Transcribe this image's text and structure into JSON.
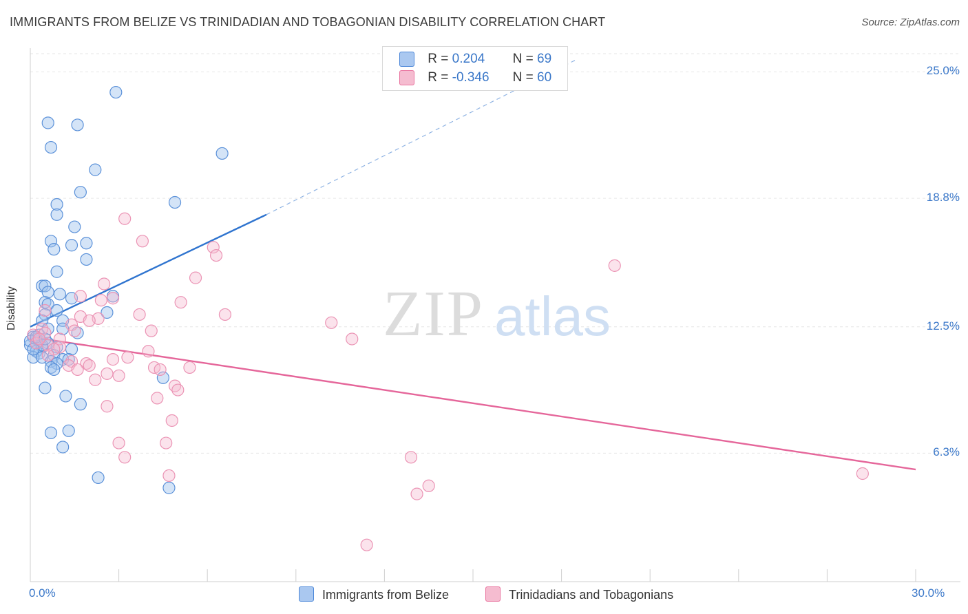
{
  "title": "IMMIGRANTS FROM BELIZE VS TRINIDADIAN AND TOBAGONIAN DISABILITY CORRELATION CHART",
  "source": "Source: ZipAtlas.com",
  "watermark": {
    "zip": "ZIP",
    "atlas": "atlas"
  },
  "legend": {
    "rows": [
      {
        "r_label": "R = ",
        "r_value": "0.204",
        "n_label": "N = ",
        "n_value": "69"
      },
      {
        "r_label": "R = ",
        "r_value": "-0.346",
        "n_label": "N = ",
        "n_value": "60"
      }
    ]
  },
  "colors": {
    "blue": "#4a86d8",
    "blue_fill": "#aac8f0",
    "pink": "#e9719d",
    "pink_fill": "#f5bcd0",
    "axis_text": "#3b78c9"
  },
  "chart_data": {
    "type": "scatter",
    "ylabel": "Disability",
    "xlabel": "",
    "xlim": [
      0,
      30
    ],
    "ylim": [
      0,
      26.5
    ],
    "x_tick_labels": [
      "0.0%",
      "30.0%"
    ],
    "y_ticks": [
      {
        "value": 6.3,
        "label": "6.3%"
      },
      {
        "value": 12.5,
        "label": "12.5%"
      },
      {
        "value": 18.8,
        "label": "18.8%"
      },
      {
        "value": 25.0,
        "label": "25.0%"
      }
    ],
    "grid": true,
    "legend_position": "top-center",
    "series": [
      {
        "name": "Immigrants from Belize",
        "color": "#4a86d8",
        "trend": {
          "x0": 0.0,
          "y0": 12.5,
          "x1": 8.0,
          "y1": 18.0,
          "x_dash_end": 18.5,
          "y_dash_end": 25.6
        },
        "points": [
          [
            2.9,
            24.0
          ],
          [
            0.6,
            22.5
          ],
          [
            1.6,
            22.4
          ],
          [
            0.7,
            21.3
          ],
          [
            6.5,
            21.0
          ],
          [
            2.2,
            20.2
          ],
          [
            1.7,
            19.1
          ],
          [
            0.9,
            18.5
          ],
          [
            4.9,
            18.6
          ],
          [
            0.9,
            18.0
          ],
          [
            1.5,
            17.4
          ],
          [
            0.7,
            16.7
          ],
          [
            1.9,
            16.6
          ],
          [
            1.4,
            16.5
          ],
          [
            0.8,
            16.3
          ],
          [
            1.9,
            15.8
          ],
          [
            0.9,
            15.2
          ],
          [
            0.4,
            14.5
          ],
          [
            0.5,
            14.5
          ],
          [
            0.6,
            14.2
          ],
          [
            1.0,
            14.1
          ],
          [
            2.8,
            14.0
          ],
          [
            1.4,
            13.9
          ],
          [
            0.5,
            13.7
          ],
          [
            0.6,
            13.6
          ],
          [
            0.9,
            13.3
          ],
          [
            2.6,
            13.2
          ],
          [
            0.5,
            13.1
          ],
          [
            0.4,
            12.8
          ],
          [
            1.1,
            12.8
          ],
          [
            0.6,
            12.4
          ],
          [
            1.1,
            12.4
          ],
          [
            1.6,
            12.2
          ],
          [
            0.1,
            12.0
          ],
          [
            0.2,
            11.9
          ],
          [
            0.3,
            11.8
          ],
          [
            0.2,
            11.7
          ],
          [
            0.6,
            11.7
          ],
          [
            0.0,
            11.6
          ],
          [
            0.4,
            11.5
          ],
          [
            0.9,
            11.5
          ],
          [
            1.4,
            11.4
          ],
          [
            0.2,
            11.3
          ],
          [
            0.3,
            11.2
          ],
          [
            0.8,
            11.1
          ],
          [
            0.1,
            11.0
          ],
          [
            0.4,
            11.0
          ],
          [
            1.1,
            10.9
          ],
          [
            1.3,
            10.9
          ],
          [
            0.7,
            10.8
          ],
          [
            0.9,
            10.7
          ],
          [
            0.7,
            10.5
          ],
          [
            0.8,
            10.4
          ],
          [
            4.5,
            10.0
          ],
          [
            0.5,
            9.5
          ],
          [
            1.2,
            9.1
          ],
          [
            1.7,
            8.7
          ],
          [
            1.3,
            7.4
          ],
          [
            0.7,
            7.3
          ],
          [
            1.1,
            6.6
          ],
          [
            2.3,
            5.1
          ],
          [
            4.7,
            4.6
          ],
          [
            0.2,
            11.9
          ],
          [
            0.3,
            12.1
          ],
          [
            0.0,
            11.8
          ],
          [
            0.4,
            11.6
          ],
          [
            0.2,
            12.0
          ],
          [
            0.1,
            11.4
          ],
          [
            0.5,
            11.9
          ]
        ]
      },
      {
        "name": "Trinidadians and Tobagonians",
        "color": "#e9719d",
        "trend": {
          "x0": 0.0,
          "y0": 12.0,
          "x1": 30.0,
          "y1": 5.5
        },
        "points": [
          [
            3.2,
            17.8
          ],
          [
            3.8,
            16.7
          ],
          [
            6.2,
            16.4
          ],
          [
            6.3,
            16.0
          ],
          [
            19.8,
            15.5
          ],
          [
            5.6,
            14.9
          ],
          [
            2.5,
            14.6
          ],
          [
            1.7,
            14.0
          ],
          [
            2.4,
            13.8
          ],
          [
            2.8,
            13.9
          ],
          [
            5.1,
            13.7
          ],
          [
            0.5,
            13.3
          ],
          [
            3.7,
            13.1
          ],
          [
            6.6,
            13.1
          ],
          [
            1.7,
            13.0
          ],
          [
            2.3,
            12.9
          ],
          [
            2.0,
            12.8
          ],
          [
            10.2,
            12.7
          ],
          [
            1.4,
            12.6
          ],
          [
            0.4,
            12.4
          ],
          [
            1.5,
            12.3
          ],
          [
            4.1,
            12.3
          ],
          [
            0.1,
            12.1
          ],
          [
            0.5,
            12.2
          ],
          [
            1.0,
            11.9
          ],
          [
            10.9,
            11.9
          ],
          [
            0.2,
            11.7
          ],
          [
            0.6,
            11.6
          ],
          [
            1.0,
            11.5
          ],
          [
            0.8,
            11.4
          ],
          [
            4.0,
            11.3
          ],
          [
            3.3,
            11.0
          ],
          [
            2.8,
            10.9
          ],
          [
            1.4,
            10.8
          ],
          [
            1.9,
            10.7
          ],
          [
            1.3,
            10.6
          ],
          [
            2.0,
            10.6
          ],
          [
            4.2,
            10.5
          ],
          [
            4.4,
            10.4
          ],
          [
            5.4,
            10.5
          ],
          [
            1.6,
            10.4
          ],
          [
            2.6,
            10.2
          ],
          [
            3.0,
            10.1
          ],
          [
            2.2,
            9.9
          ],
          [
            4.9,
            9.6
          ],
          [
            5.0,
            9.4
          ],
          [
            4.3,
            9.0
          ],
          [
            2.6,
            8.6
          ],
          [
            4.8,
            7.9
          ],
          [
            3.0,
            6.8
          ],
          [
            4.6,
            6.8
          ],
          [
            3.2,
            6.1
          ],
          [
            12.9,
            6.1
          ],
          [
            28.2,
            5.3
          ],
          [
            4.7,
            5.2
          ],
          [
            13.5,
            4.7
          ],
          [
            13.1,
            4.3
          ],
          [
            11.4,
            1.8
          ],
          [
            0.3,
            11.9
          ],
          [
            0.6,
            11.1
          ]
        ]
      }
    ]
  }
}
